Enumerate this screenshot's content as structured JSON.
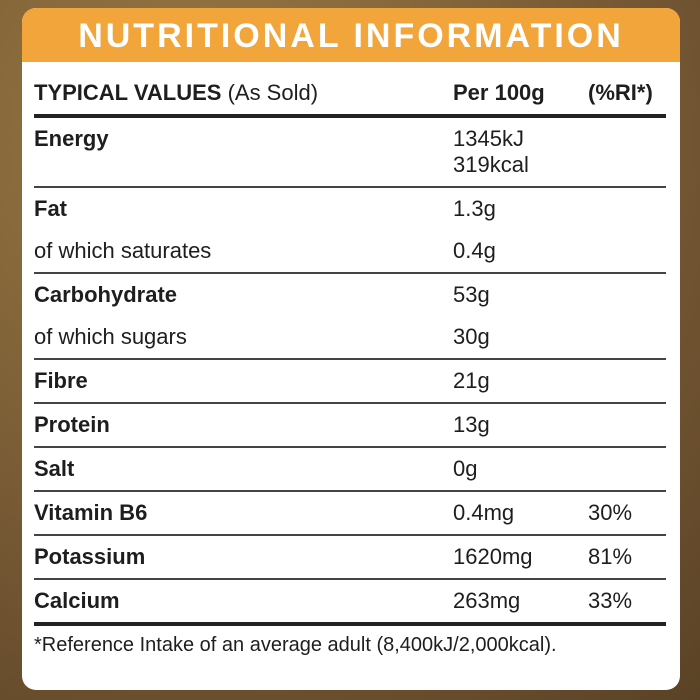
{
  "header": {
    "title": "NUTRITIONAL INFORMATION"
  },
  "table": {
    "columns": {
      "label_bold": "TYPICAL VALUES",
      "label_note": "(As Sold)",
      "per100": "Per 100g",
      "ri": "(%RI*)"
    },
    "groups": [
      {
        "rows": [
          [
            "Energy",
            [
              "1345kJ",
              "319kcal"
            ]
          ]
        ]
      },
      {
        "rows": [
          [
            "Fat",
            [
              "1.3g"
            ]
          ],
          [
            "of which saturates",
            [
              "0.4g"
            ]
          ]
        ]
      },
      {
        "rows": [
          [
            "Carbohydrate",
            [
              "53g"
            ]
          ],
          [
            "of which sugars",
            [
              "30g"
            ]
          ]
        ]
      },
      {
        "rows": [
          [
            "Fibre",
            [
              "21g"
            ]
          ]
        ]
      },
      {
        "rows": [
          [
            "Protein",
            [
              "13g"
            ]
          ]
        ]
      },
      {
        "rows": [
          [
            "Salt",
            [
              "0g"
            ]
          ]
        ]
      },
      {
        "rows": [
          [
            "Vitamin B6",
            [
              "0.4mg"
            ],
            "30%"
          ]
        ]
      },
      {
        "rows": [
          [
            "Potassium",
            [
              "1620mg"
            ],
            "81%"
          ]
        ]
      },
      {
        "rows": [
          [
            "Calcium",
            [
              "263mg"
            ],
            "33%"
          ]
        ]
      }
    ]
  },
  "footnote": "*Reference Intake of an average adult (8,400kJ/2,000kcal)."
}
